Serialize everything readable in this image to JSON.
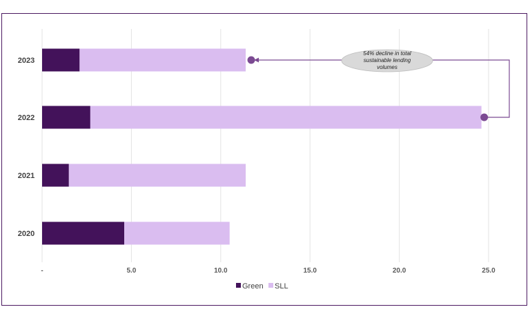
{
  "chart_data": {
    "type": "bar",
    "orientation": "horizontal",
    "stacked": true,
    "title": "",
    "xlabel": "",
    "ylabel": "",
    "categories": [
      "2023",
      "2022",
      "2021",
      "2020"
    ],
    "series": [
      {
        "name": "Green",
        "color": "#43125a",
        "values": [
          2.1,
          2.7,
          1.5,
          4.6
        ]
      },
      {
        "name": "SLL",
        "color": "#dabdf0",
        "values": [
          9.3,
          21.9,
          9.9,
          5.9
        ]
      }
    ],
    "xlim": [
      0,
      27
    ],
    "ticks": [
      {
        "value": 0,
        "label": "-"
      },
      {
        "value": 5,
        "label": "5.0"
      },
      {
        "value": 10,
        "label": "10.0"
      },
      {
        "value": 15,
        "label": "15.0"
      },
      {
        "value": 20,
        "label": "20.0"
      },
      {
        "value": 25,
        "label": "25.0"
      }
    ],
    "grid": true,
    "legend": {
      "position": "bottom-center",
      "entries": [
        "Green",
        "SLL"
      ]
    },
    "annotation": {
      "lines": [
        "54% decline in total",
        "sustainable lending",
        "volumes"
      ],
      "from_category": "2022",
      "to_category": "2023",
      "marker_color": "#7b4a92"
    }
  }
}
